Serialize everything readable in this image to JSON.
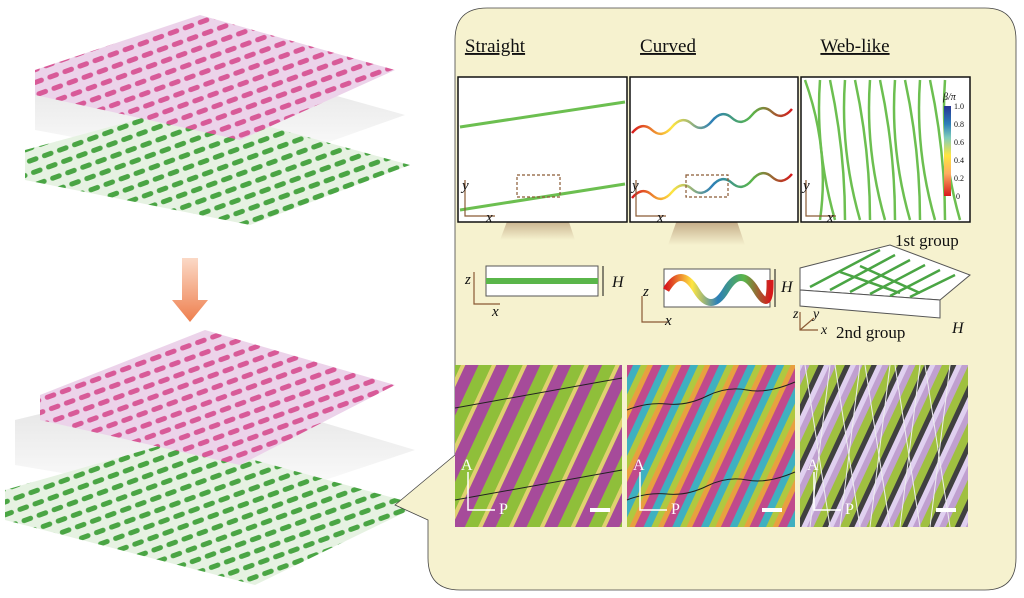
{
  "headers": [
    "Straight",
    "Curved",
    "Web-like"
  ],
  "axes": {
    "x": "x",
    "y": "y",
    "z": "z"
  },
  "height_label": "H",
  "colorbar": {
    "title": "β/π",
    "ticks": [
      "1.0",
      "0.8",
      "0.6",
      "0.4",
      "0.2",
      "0"
    ]
  },
  "groups": {
    "first": "1st group",
    "second": "2nd group"
  },
  "polarizer": {
    "analyzer": "A",
    "polarizer": "P"
  },
  "colors": {
    "panel": "#f6f2cf",
    "pink": "#e06aa0",
    "green": "#5ab64a",
    "arrow": "#ef8a5a"
  }
}
